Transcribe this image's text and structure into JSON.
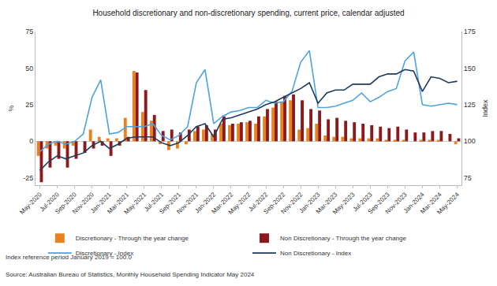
{
  "chart_data": {
    "type": "bar",
    "title": "Household discretionary and non-discretionary spending, current price, calendar adjusted",
    "y_label": "%",
    "y2_label": "Index",
    "annotations": [
      "Index reference period January 2019 = 100.0",
      "Source: Australian Bureau of Statistics, Monthly Household Spending Indicator May 2024"
    ],
    "categories": [
      "May-2020",
      null,
      "Jul-2020",
      null,
      "Sep-2020",
      null,
      "Nov-2020",
      null,
      "Jan-2021",
      null,
      "Mar-2021",
      null,
      "May-2021",
      null,
      "Jul-2021",
      null,
      "Sep-2021",
      null,
      "Nov-2021",
      null,
      "Jan-2022",
      null,
      "Mar-2022",
      null,
      "May-2022",
      null,
      "Jul-2022",
      null,
      "Sep-2022",
      null,
      "Nov-2022",
      null,
      "Jan-2023",
      null,
      "Mar-2023",
      null,
      "May-2023",
      null,
      "Jul-2023",
      null,
      "Sep-2023",
      null,
      "Nov-2023",
      null,
      "Jan-2024",
      null,
      "Mar-2024",
      null,
      "May-2024"
    ],
    "series": [
      {
        "name": "Discretionary - Through the year change",
        "type": "bar",
        "color": "#e8821c",
        "values": [
          -10,
          -5,
          -3,
          -5,
          -3,
          0,
          8,
          3,
          2,
          2,
          16,
          48,
          20,
          14,
          -2,
          -6,
          -5,
          -2,
          7,
          8,
          5,
          12,
          11,
          12,
          13,
          12,
          17,
          23,
          27,
          28,
          8,
          9,
          12,
          4,
          3,
          3,
          2,
          2,
          2,
          2,
          1,
          1,
          1,
          0,
          1,
          1,
          1,
          0,
          -2
        ]
      },
      {
        "name": "Non Discretionary - Through the year change",
        "type": "bar",
        "color": "#8b1a1f",
        "values": [
          -28,
          -18,
          -12,
          -18,
          -12,
          -8,
          -5,
          -3,
          -10,
          -3,
          3,
          47,
          35,
          18,
          7,
          8,
          6,
          8,
          10,
          11,
          8,
          17,
          12,
          13,
          14,
          17,
          22,
          27,
          31,
          32,
          28,
          22,
          21,
          15,
          16,
          14,
          13,
          12,
          11,
          10,
          9,
          10,
          8,
          6,
          6,
          7,
          7,
          5,
          2
        ]
      },
      {
        "name": "Discretionary - Index",
        "type": "line",
        "axis": "y2",
        "color": "#4da3dc",
        "values": [
          93,
          98,
          100,
          98,
          100,
          105,
          130,
          142,
          105,
          106,
          110,
          110,
          110,
          112,
          104,
          101,
          104,
          110,
          140,
          149,
          112,
          117,
          120,
          121,
          123,
          123,
          128,
          126,
          127,
          134,
          154,
          162,
          123,
          123,
          124,
          126,
          128,
          133,
          127,
          130,
          134,
          136,
          155,
          161,
          125,
          124,
          125,
          126,
          125
        ]
      },
      {
        "name": "Non Discretionary - Index",
        "type": "line",
        "axis": "y2",
        "color": "#1e3a5c",
        "values": [
          80,
          86,
          90,
          88,
          90,
          92,
          97,
          100,
          95,
          98,
          102,
          103,
          103,
          103,
          99,
          97,
          99,
          104,
          110,
          112,
          103,
          115,
          116,
          118,
          120,
          122,
          125,
          127,
          130,
          133,
          136,
          140,
          126,
          133,
          135,
          135,
          139,
          139,
          139,
          144,
          146,
          146,
          149,
          148,
          134,
          144,
          143,
          140,
          141
        ]
      }
    ],
    "ylim": [
      -30,
      75
    ],
    "yticks": [
      -25,
      0,
      25,
      50,
      75
    ],
    "y2lim": [
      70,
      175
    ],
    "y2ticks": [
      75,
      100,
      125,
      150,
      175
    ],
    "grid": false,
    "legend": "bottom"
  }
}
